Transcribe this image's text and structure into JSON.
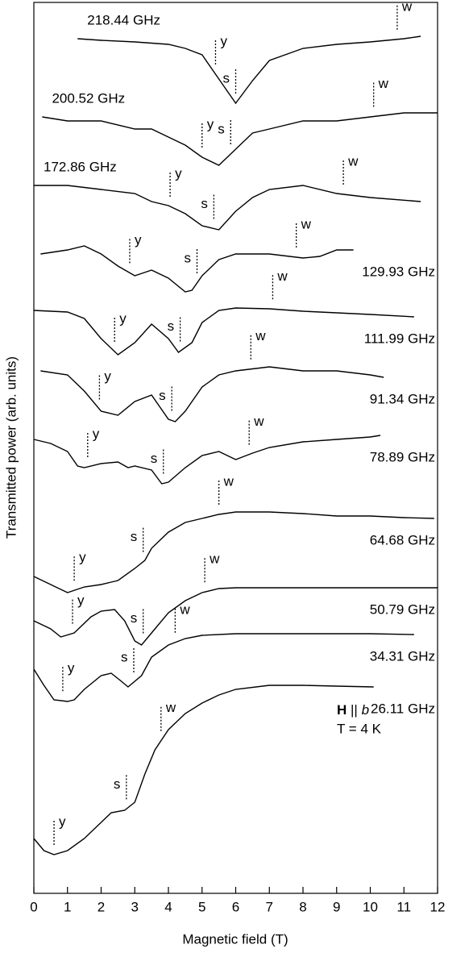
{
  "chart_data": {
    "type": "line",
    "xlabel": "Magnetic field (T)",
    "ylabel": "Transmitted power (arb. units)",
    "xlim": [
      0,
      12
    ],
    "xticks": [
      0,
      1,
      2,
      3,
      4,
      5,
      6,
      7,
      8,
      9,
      10,
      11,
      12
    ],
    "ylim": [
      0,
      1105
    ],
    "color": "#000000",
    "annotation": {
      "field": "H",
      "relation": "||",
      "axis": "b",
      "temperature": "T = 4 K"
    },
    "series": [
      {
        "name": "218.44 GHz",
        "x": [
          1.3,
          2,
          3,
          4,
          4.5,
          5,
          5.5,
          6,
          6.5,
          7,
          8,
          9,
          10,
          11,
          11.5
        ],
        "values": [
          1060,
          1058,
          1056,
          1053,
          1048,
          1040,
          1010,
          980,
          1008,
          1033,
          1048,
          1053,
          1056,
          1060,
          1063
        ],
        "markers": [
          {
            "label": "y",
            "field": 5.4
          },
          {
            "label": "s",
            "field": 6.0
          },
          {
            "label": "w",
            "field": 10.8
          }
        ]
      },
      {
        "name": "200.52 GHz",
        "x": [
          0.25,
          1,
          2,
          3,
          3.5,
          4,
          4.5,
          5,
          5.5,
          6,
          6.5,
          7,
          8,
          9,
          10,
          11,
          12
        ],
        "values": [
          963,
          958,
          958,
          948,
          948,
          938,
          928,
          913,
          903,
          923,
          943,
          948,
          958,
          958,
          963,
          968,
          968
        ],
        "markers": [
          {
            "label": "y",
            "field": 5.0
          },
          {
            "label": "s",
            "field": 5.85
          },
          {
            "label": "w",
            "field": 10.1
          }
        ]
      },
      {
        "name": "172.86 GHz",
        "x": [
          0,
          1,
          2,
          3,
          3.5,
          4,
          4.5,
          5,
          5.5,
          6,
          6.5,
          7,
          8,
          9,
          10,
          11.5
        ],
        "values": [
          878,
          878,
          873,
          868,
          858,
          853,
          843,
          828,
          823,
          846,
          863,
          873,
          878,
          868,
          863,
          858
        ],
        "markers": [
          {
            "label": "y",
            "field": 4.05
          },
          {
            "label": "s",
            "field": 5.35
          },
          {
            "label": "w",
            "field": 9.2
          }
        ]
      },
      {
        "name": "129.93 GHz",
        "x": [
          0.2,
          1,
          1.5,
          2,
          2.5,
          3,
          3.5,
          4,
          4.5,
          4.7,
          5,
          5.5,
          6,
          7,
          8,
          8.5,
          9,
          9.5
        ],
        "values": [
          793,
          798,
          803,
          793,
          778,
          766,
          773,
          763,
          746,
          748,
          766,
          786,
          793,
          793,
          788,
          790,
          798,
          798
        ],
        "markers": [
          {
            "label": "y",
            "field": 2.85
          },
          {
            "label": "s",
            "field": 4.85
          },
          {
            "label": "w",
            "field": 7.8
          }
        ]
      },
      {
        "name": "111.99 GHz",
        "x": [
          0,
          1,
          1.5,
          2,
          2.5,
          3,
          3.5,
          4,
          4.3,
          4.7,
          5,
          5.5,
          6,
          7,
          8,
          9,
          10,
          11.3
        ],
        "values": [
          723,
          721,
          713,
          688,
          668,
          683,
          706,
          688,
          671,
          683,
          708,
          723,
          726,
          725,
          722,
          720,
          718,
          715
        ],
        "markers": [
          {
            "label": "y",
            "field": 2.4
          },
          {
            "label": "s",
            "field": 4.35
          },
          {
            "label": "w",
            "field": 7.1
          }
        ]
      },
      {
        "name": "91.34 GHz",
        "x": [
          0.2,
          1,
          1.5,
          2,
          2.5,
          3,
          3.5,
          4,
          4.2,
          4.5,
          5,
          5.5,
          6,
          7,
          8,
          9,
          10,
          10.4
        ],
        "values": [
          648,
          643,
          623,
          598,
          593,
          610,
          618,
          588,
          585,
          598,
          628,
          643,
          648,
          653,
          648,
          648,
          643,
          640
        ],
        "markers": [
          {
            "label": "y",
            "field": 1.95
          },
          {
            "label": "s",
            "field": 4.1
          },
          {
            "label": "w",
            "field": 6.45
          }
        ]
      },
      {
        "name": "78.89 GHz",
        "x": [
          0,
          0.5,
          1,
          1.3,
          1.5,
          2,
          2.5,
          2.8,
          3,
          3.5,
          3.8,
          4,
          4.5,
          5,
          5.5,
          6,
          6.5,
          7,
          8,
          9,
          10,
          10.3
        ],
        "values": [
          563,
          558,
          548,
          530,
          528,
          533,
          535,
          528,
          530,
          525,
          508,
          510,
          528,
          543,
          548,
          538,
          546,
          553,
          560,
          563,
          566,
          568
        ],
        "markers": [
          {
            "label": "y",
            "field": 1.6
          },
          {
            "label": "s",
            "field": 3.85
          },
          {
            "label": "w",
            "field": 6.4
          }
        ]
      },
      {
        "name": "64.68 GHz",
        "x": [
          0,
          0.5,
          1,
          1.5,
          2,
          2.3,
          2.5,
          3,
          3.3,
          3.5,
          4,
          4.5,
          5,
          5.5,
          6,
          7,
          8,
          9,
          10,
          11,
          11.9
        ],
        "values": [
          393,
          383,
          373,
          380,
          383,
          386,
          388,
          403,
          413,
          428,
          448,
          460,
          465,
          470,
          473,
          473,
          471,
          468,
          468,
          466,
          465
        ],
        "markers": [
          {
            "label": "y",
            "field": 1.2
          },
          {
            "label": "s",
            "field": 3.25
          },
          {
            "label": "w",
            "field": 5.5
          }
        ]
      },
      {
        "name": "50.79 GHz",
        "x": [
          0,
          0.5,
          0.8,
          1.2,
          1.7,
          2,
          2.4,
          2.7,
          3,
          3.2,
          3.5,
          4,
          4.5,
          5,
          5.5,
          6,
          8,
          10,
          12
        ],
        "values": [
          338,
          328,
          318,
          323,
          343,
          350,
          352,
          338,
          313,
          308,
          323,
          348,
          363,
          373,
          378,
          379,
          379,
          379,
          379
        ],
        "markers": [
          {
            "label": "y",
            "field": 1.15
          },
          {
            "label": "s",
            "field": 3.25
          },
          {
            "label": "w",
            "field": 5.08
          }
        ]
      },
      {
        "name": "34.31 GHz",
        "x": [
          0,
          0.3,
          0.6,
          1,
          1.2,
          1.5,
          2,
          2.3,
          2.6,
          2.8,
          3.2,
          3.5,
          4,
          4.5,
          5,
          6,
          8,
          10,
          11.3
        ],
        "values": [
          278,
          258,
          240,
          238,
          240,
          253,
          270,
          273,
          263,
          256,
          270,
          293,
          308,
          316,
          320,
          322,
          322,
          322,
          321
        ],
        "markers": [
          {
            "label": "y",
            "field": 0.86
          },
          {
            "label": "s",
            "field": 2.97
          },
          {
            "label": "w",
            "field": 4.2
          }
        ]
      },
      {
        "name": "26.11 GHz",
        "x": [
          0,
          0.3,
          0.6,
          1,
          1.5,
          2,
          2.3,
          2.7,
          3,
          3.3,
          3.6,
          4,
          4.5,
          5,
          5.5,
          6,
          7,
          8,
          9,
          10.1
        ],
        "values": [
          68,
          53,
          48,
          53,
          68,
          88,
          100,
          103,
          113,
          148,
          178,
          203,
          223,
          236,
          246,
          253,
          258,
          258,
          257,
          256
        ],
        "markers": [
          {
            "label": "y",
            "field": 0.6
          },
          {
            "label": "s",
            "field": 2.75
          },
          {
            "label": "w",
            "field": 3.78
          }
        ]
      }
    ]
  }
}
